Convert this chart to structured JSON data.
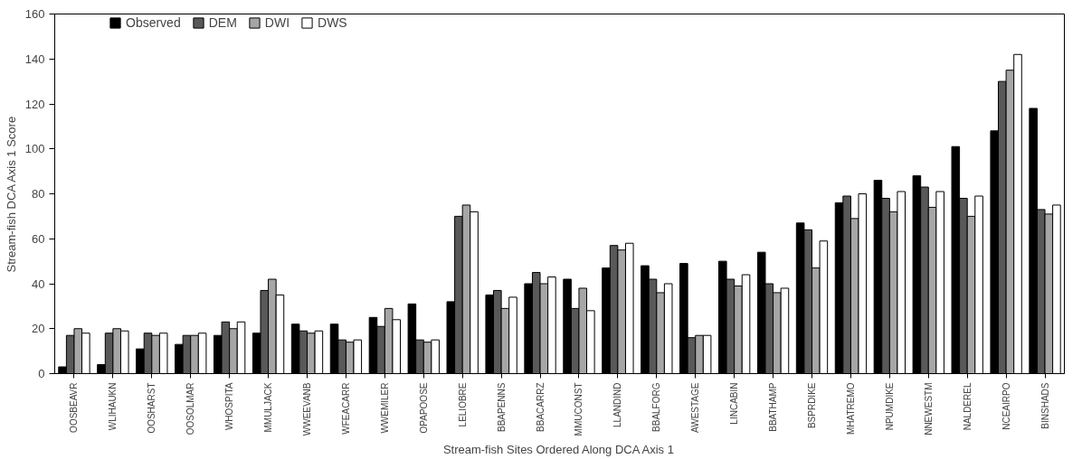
{
  "chart_data": {
    "type": "bar",
    "xlabel": "Stream-fish Sites Ordered Along DCA Axis 1",
    "ylabel": "Stream-fish DCA Axis 1 Score",
    "categories": [
      "OOSBEAVR",
      "WLIHAUKN",
      "OOSHARST",
      "OOSOLMAR",
      "WHOSPITA",
      "MMULJACK",
      "WWEEVANB",
      "WFEACARR",
      "WWEMILER",
      "OPAPOOSE",
      "LELIOBRE",
      "BBAPENNS",
      "BBACARRZ",
      "MMUCONST",
      "LLANDIND",
      "BBALFORG",
      "AWESTAGE",
      "LINCABIN",
      "BBATHAMP",
      "BSPRDIKE",
      "MHATREMO",
      "NPUMDIKE",
      "NNEWESTM",
      "NALDEREL",
      "NCEAIRPO",
      "BINSHADS"
    ],
    "series": [
      {
        "name": "Observed",
        "color": "#000000",
        "values": [
          3,
          4,
          11,
          13,
          17,
          18,
          22,
          22,
          25,
          31,
          32,
          35,
          40,
          42,
          47,
          48,
          49,
          50,
          54,
          67,
          76,
          86,
          88,
          101,
          108,
          118
        ]
      },
      {
        "name": "DEM",
        "color": "#595959",
        "values": [
          17,
          18,
          18,
          17,
          23,
          37,
          19,
          15,
          21,
          15,
          70,
          37,
          45,
          29,
          57,
          42,
          16,
          42,
          40,
          64,
          79,
          78,
          83,
          78,
          130,
          73
        ]
      },
      {
        "name": "DWI",
        "color": "#a6a6a6",
        "values": [
          20,
          20,
          17,
          17,
          20,
          42,
          18,
          14,
          29,
          14,
          75,
          29,
          40,
          38,
          55,
          36,
          17,
          39,
          36,
          47,
          69,
          72,
          74,
          70,
          135,
          71
        ]
      },
      {
        "name": "DWS",
        "color": "#ffffff",
        "values": [
          18,
          19,
          18,
          18,
          23,
          35,
          19,
          15,
          24,
          15,
          72,
          34,
          43,
          28,
          58,
          40,
          17,
          44,
          38,
          59,
          80,
          81,
          81,
          79,
          142,
          75
        ]
      }
    ],
    "ylim": [
      0,
      160
    ],
    "yticks": [
      0,
      20,
      40,
      60,
      80,
      100,
      120,
      140,
      160
    ],
    "grid": false,
    "legend": "top left"
  }
}
